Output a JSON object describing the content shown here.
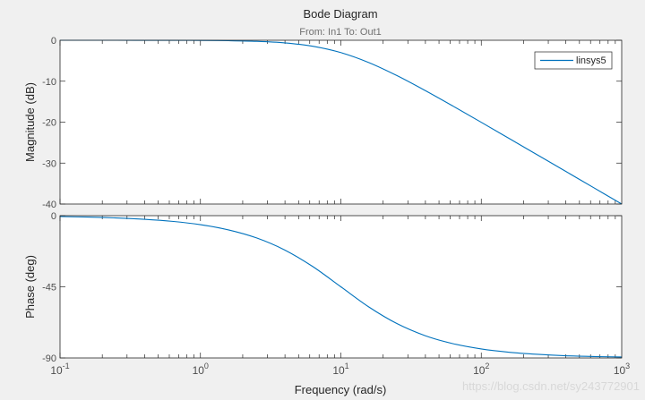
{
  "chart_data": {
    "type": "line",
    "title": "Bode Diagram",
    "subtitle": "From: In1  To: Out1",
    "xlabel": "Frequency  (rad/s)",
    "xscale": "log",
    "xlim": [
      0.1,
      1000
    ],
    "xticks": [
      {
        "value": 0.1,
        "base": "10",
        "exp": "-1"
      },
      {
        "value": 1,
        "base": "10",
        "exp": "0"
      },
      {
        "value": 10,
        "base": "10",
        "exp": "1"
      },
      {
        "value": 100,
        "base": "10",
        "exp": "2"
      },
      {
        "value": 1000,
        "base": "10",
        "exp": "3"
      }
    ],
    "legend": {
      "placement": "top-right",
      "entries": [
        "linsys5"
      ]
    },
    "line_color": "#0072bd",
    "grid": false,
    "x": [
      0.1,
      0.158,
      0.251,
      0.398,
      0.631,
      1,
      1.585,
      2.512,
      3.981,
      6.31,
      10,
      15.85,
      25.12,
      39.81,
      63.1,
      100,
      158.5,
      251.2,
      398.1,
      631,
      1000
    ],
    "panels": [
      {
        "ylabel": "Magnitude (dB)",
        "ylim": [
          -40,
          0
        ],
        "yticks": [
          0,
          -10,
          -20,
          -30,
          -40
        ],
        "series": [
          {
            "name": "linsys5",
            "values": [
              -0.0004,
              -0.0011,
              -0.0027,
              -0.0069,
              -0.0173,
              -0.043,
              -0.108,
              -0.266,
              -0.64,
              -1.455,
              -3.01,
              -5.455,
              -8.64,
              -12.27,
              -16.11,
              -20.04,
              -24.02,
              -28.01,
              -32.0,
              -36.0,
              -40.0
            ]
          }
        ]
      },
      {
        "ylabel": "Phase (deg)",
        "ylim": [
          -90,
          0
        ],
        "yticks": [
          0,
          -45,
          -90
        ],
        "series": [
          {
            "name": "linsys5",
            "values": [
              -0.57,
              -0.91,
              -1.44,
              -2.28,
              -3.61,
              -5.71,
              -9.01,
              -14.1,
              -21.7,
              -32.2,
              -45,
              -57.8,
              -68.3,
              -75.9,
              -81.0,
              -84.3,
              -86.4,
              -87.7,
              -88.6,
              -89.1,
              -89.4
            ]
          }
        ]
      }
    ]
  },
  "watermark": "https://blog.csdn.net/sy243772901"
}
